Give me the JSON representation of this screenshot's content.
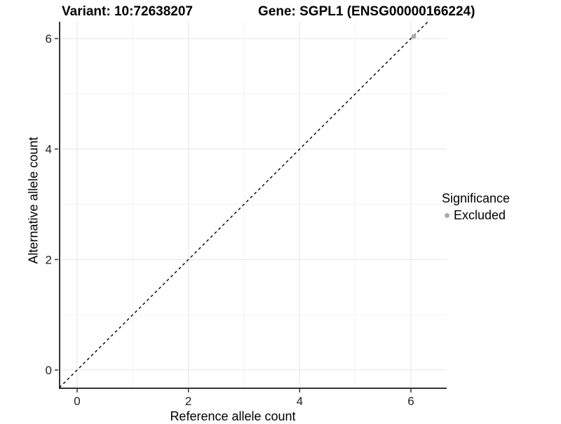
{
  "chart_data": {
    "type": "scatter",
    "titles": {
      "left": "Variant: 10:72638207",
      "right": "Gene: SGPL1 (ENSG00000166224)"
    },
    "xlabel": "Reference allele count",
    "ylabel": "Alternative allele count",
    "x_ticks": [
      0,
      2,
      4,
      6
    ],
    "y_ticks": [
      0,
      2,
      4,
      6
    ],
    "x_minor_ticks": [
      1,
      3,
      5
    ],
    "y_minor_ticks": [
      1,
      3,
      5
    ],
    "xlim": [
      -0.32,
      6.65
    ],
    "ylim": [
      -0.32,
      6.3
    ],
    "grid": true,
    "points": [
      {
        "x": 6,
        "y": 6,
        "series": "Excluded"
      }
    ],
    "reference_line": {
      "slope": 1,
      "intercept": 0,
      "style": "dashed",
      "color": "#000000"
    },
    "legend": {
      "position": "right",
      "title": "Significance",
      "entries": [
        {
          "label": "Excluded",
          "color": "#ababab",
          "marker": "circle"
        }
      ]
    },
    "colors": {
      "background": "#ffffff",
      "grid_major": "#e4e4e4",
      "grid_minor": "#f2f2f2",
      "axis_line": "#343434",
      "tick_text": "#1f1f1f",
      "point": "#ababab"
    }
  }
}
